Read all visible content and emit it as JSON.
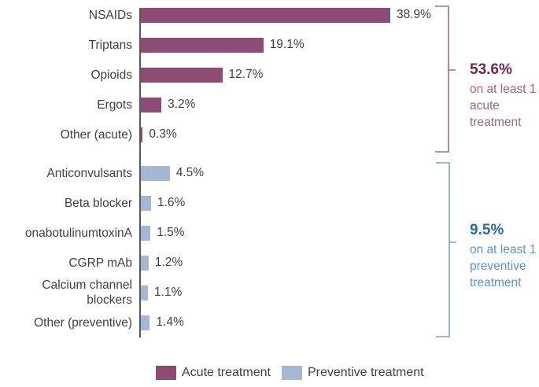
{
  "chart_data": {
    "type": "bar",
    "orientation": "horizontal",
    "title": "",
    "xlabel": "",
    "ylabel": "",
    "xlim": [
      0,
      40
    ],
    "unit": "%",
    "grid": false,
    "legend_position": "bottom",
    "categories": [
      "NSAIDs",
      "Triptans",
      "Opioids",
      "Ergots",
      "Other (acute)",
      "Anticonvulsants",
      "Beta blocker",
      "onabotulinumtoxinA",
      "CGRP mAb",
      "Calcium channel blockers",
      "Other (preventive)"
    ],
    "values": [
      38.9,
      19.1,
      12.7,
      3.2,
      0.3,
      4.5,
      1.6,
      1.5,
      1.2,
      1.1,
      1.4
    ],
    "value_labels": [
      "38.9%",
      "19.1%",
      "12.7%",
      "3.2%",
      "0.3%",
      "4.5%",
      "1.6%",
      "1.5%",
      "1.2%",
      "1.1%",
      "1.4%"
    ],
    "series_membership": [
      "acute",
      "acute",
      "acute",
      "acute",
      "acute",
      "preventive",
      "preventive",
      "preventive",
      "preventive",
      "preventive",
      "preventive"
    ],
    "series": [
      {
        "key": "acute",
        "name": "Acute treatment",
        "color": "#8e4c74"
      },
      {
        "key": "preventive",
        "name": "Preventive treatment",
        "color": "#a4b8d5"
      }
    ]
  },
  "annotations": {
    "acute": {
      "value": "53.6%",
      "lines": [
        "on at least 1",
        "acute",
        "treatment"
      ],
      "value_color": "#6e2a4d",
      "text_color": "#9c6487",
      "bracket_color": "#a46b8d"
    },
    "preventive": {
      "value": "9.5%",
      "lines": [
        "on at least 1",
        "preventive",
        "treatment"
      ],
      "value_color": "#2a6aa8",
      "text_color": "#5b94cd",
      "bracket_color": "#7da3c8"
    }
  },
  "legend": {
    "items": [
      {
        "label": "Acute treatment",
        "color": "#8e4c74"
      },
      {
        "label": "Preventive treatment",
        "color": "#a4b8d5"
      }
    ]
  },
  "axis": {
    "color": "#595959"
  }
}
